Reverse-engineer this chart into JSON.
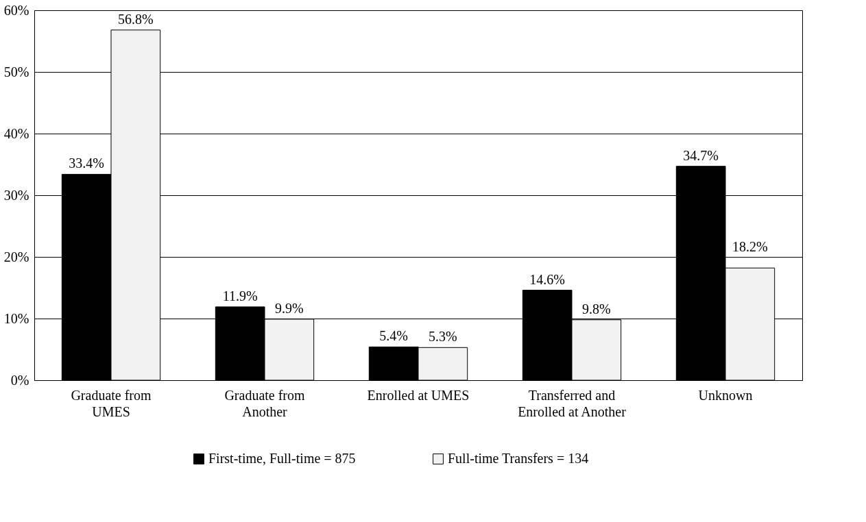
{
  "chart_data": {
    "type": "bar",
    "categories": [
      "Graduate from\nUMES",
      "Graduate from\nAnother",
      "Enrolled at UMES",
      "Transferred and\nEnrolled at Another",
      "Unknown"
    ],
    "series": [
      {
        "name": "First-time, Full-time = 875",
        "color": "#000000",
        "values": [
          33.4,
          11.9,
          5.4,
          14.6,
          34.7
        ],
        "value_labels": [
          "33.4%",
          "11.9%",
          "5.4%",
          "14.6%",
          "34.7%"
        ]
      },
      {
        "name": "Full-time Transfers = 134",
        "color": "#f2f2f2",
        "values": [
          56.8,
          9.9,
          5.3,
          9.8,
          18.2
        ],
        "value_labels": [
          "56.8%",
          "9.9%",
          "5.3%",
          "9.8%",
          "18.2%"
        ]
      }
    ],
    "ylim": [
      0,
      60
    ],
    "yticks": [
      {
        "value": 0,
        "label": "0%"
      },
      {
        "value": 10,
        "label": "10%"
      },
      {
        "value": 20,
        "label": "20%"
      },
      {
        "value": 30,
        "label": "30%"
      },
      {
        "value": 40,
        "label": "40%"
      },
      {
        "value": 50,
        "label": "50%"
      },
      {
        "value": 60,
        "label": "60%"
      }
    ],
    "grid": "y",
    "legend": "bottom"
  }
}
